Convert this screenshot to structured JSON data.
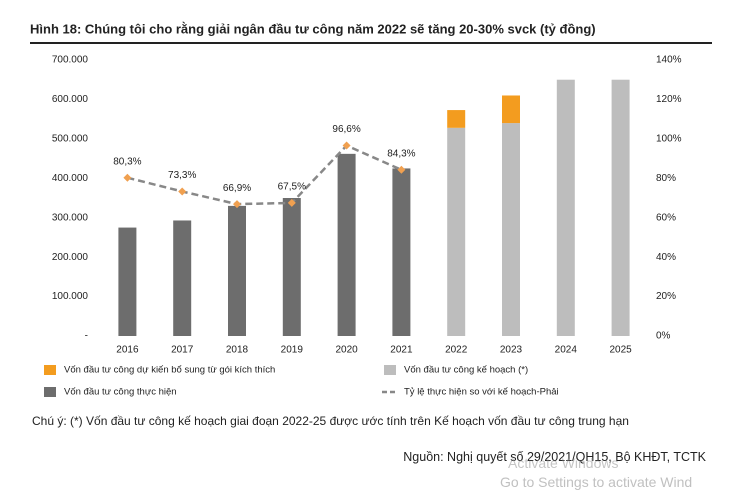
{
  "chart_data": {
    "type": "bar",
    "title": "Hình 18: Chúng tôi cho rằng giải ngân đầu tư công năm 2022 sẽ tăng 20-30% svck (tỷ đồng)",
    "categories": [
      "2016",
      "2017",
      "2018",
      "2019",
      "2020",
      "2021",
      "2022",
      "2023",
      "2024",
      "2025"
    ],
    "stacked": true,
    "series": [
      {
        "name": "Vốn đầu tư công thực hiện",
        "type": "bar",
        "color": "#6d6d6d",
        "values": [
          275000,
          293000,
          330000,
          350000,
          462000,
          425000,
          null,
          null,
          null,
          null
        ]
      },
      {
        "name": "Vốn đầu tư công kế hoạch (*)",
        "type": "bar",
        "color": "#bdbdbd",
        "values": [
          null,
          null,
          null,
          null,
          null,
          null,
          528000,
          540000,
          650000,
          650000
        ]
      },
      {
        "name": "Vốn đầu tư công dự kiến bổ sung từ gói kích thích",
        "type": "bar",
        "color": "#f39c1f",
        "values": [
          null,
          null,
          null,
          null,
          null,
          null,
          45000,
          70000,
          null,
          null
        ]
      },
      {
        "name": "Tỷ lệ thực hiện so với kế hoạch-Phải",
        "type": "line",
        "axis": "y2",
        "color": "#888888",
        "marker_color": "#f0a050",
        "values": [
          80.3,
          73.3,
          66.9,
          67.5,
          96.6,
          84.3,
          null,
          null,
          null,
          null
        ],
        "value_labels": [
          "80,3%",
          "73,3%",
          "66,9%",
          "67,5%",
          "96,6%",
          "84,3%",
          null,
          null,
          null,
          null
        ]
      }
    ],
    "ylim": [
      0,
      700000
    ],
    "yticks": [
      {
        "value": 0,
        "label": "-"
      },
      {
        "value": 100000,
        "label": "100.000"
      },
      {
        "value": 200000,
        "label": "200.000"
      },
      {
        "value": 300000,
        "label": "300.000"
      },
      {
        "value": 400000,
        "label": "400.000"
      },
      {
        "value": 500000,
        "label": "500.000"
      },
      {
        "value": 600000,
        "label": "600.000"
      },
      {
        "value": 700000,
        "label": "700.000"
      }
    ],
    "y2lim": [
      0,
      140
    ],
    "y2ticks": [
      {
        "value": 0,
        "label": "0%"
      },
      {
        "value": 20,
        "label": "20%"
      },
      {
        "value": 40,
        "label": "40%"
      },
      {
        "value": 60,
        "label": "60%"
      },
      {
        "value": 80,
        "label": "80%"
      },
      {
        "value": 100,
        "label": "100%"
      },
      {
        "value": 120,
        "label": "120%"
      },
      {
        "value": 140,
        "label": "140%"
      }
    ],
    "grid": false,
    "note": "Chú ý: (*) Vốn đầu tư công kế hoạch giai đoạn 2022-25 được ước tính trên Kế hoạch vốn đầu tư công trung hạn",
    "source": "Nguồn: Nghị quyết số 29/2021/QH15, Bộ KHĐT, TCTK",
    "watermark": [
      "Activate Windows",
      "Go to Settings to activate Wind"
    ]
  }
}
